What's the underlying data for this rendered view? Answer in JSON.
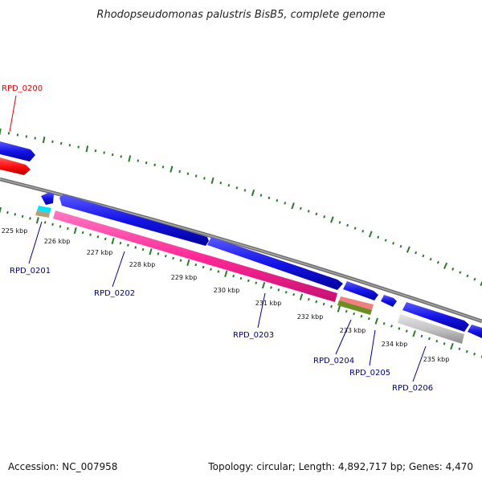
{
  "title": "Rhodopseudomonas palustris BisB5, complete genome",
  "footer": {
    "accession": "Accession: NC_007958",
    "summary": "Topology: circular; Length: 4,892,717 bp; Genes: 4,470"
  },
  "ticks": [
    "225 kbp",
    "226 kbp",
    "227 kbp",
    "228 kbp",
    "229 kbp",
    "230 kbp",
    "231 kbp",
    "232 kbp",
    "233 kbp",
    "234 kbp",
    "235 kbp"
  ],
  "genes": [
    {
      "label": "RPD_0200",
      "color": "#e00000"
    },
    {
      "label": "RPD_0201",
      "color": "#00008b"
    },
    {
      "label": "RPD_0202",
      "color": "#00008b"
    },
    {
      "label": "RPD_0203",
      "color": "#00008b"
    },
    {
      "label": "RPD_0204",
      "color": "#00008b"
    },
    {
      "label": "RPD_0205",
      "color": "#00008b"
    },
    {
      "label": "RPD_0206",
      "color": "#00008b"
    }
  ],
  "colors": {
    "cds": "#1414e6",
    "rna": "#ff1e1e",
    "pink": "#ff33a0",
    "cyan": "#00e5ff",
    "tan": "#b4a078",
    "salmon": "#f08080",
    "olive": "#6b8e23",
    "gray": "#c0c0c0",
    "backbone": "#8a8a8a",
    "tick": "#2a7a2a"
  }
}
